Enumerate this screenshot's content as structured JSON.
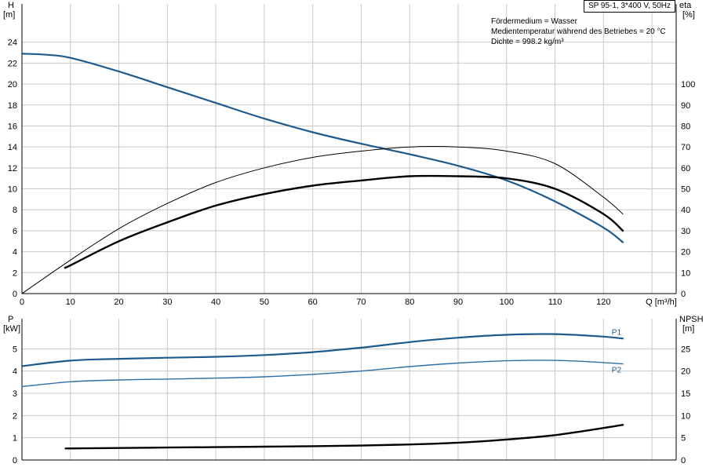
{
  "info": {
    "header": "SP 95-1, 3*400 V, 50Hz",
    "lines": [
      "Fördermedium = Wasser",
      "Medientemperatur während des Betriebes = 20 °C",
      "Dichte = 998.2 kg/m³"
    ]
  },
  "colors": {
    "grid": "#c8c8c8",
    "blue": "#1f5a8c",
    "blue2": "#2e6fa8",
    "black": "#000000"
  },
  "chart_data": [
    {
      "type": "line",
      "title": "",
      "x_axis": {
        "label": "Q [m³/h]",
        "ticks": [
          0,
          10,
          20,
          30,
          40,
          50,
          60,
          70,
          80,
          90,
          100,
          110,
          120
        ],
        "range": [
          0,
          135
        ]
      },
      "y_axis_left": {
        "label": [
          "H",
          "[m]"
        ],
        "ticks": [
          0,
          2,
          4,
          6,
          8,
          10,
          12,
          14,
          16,
          18,
          20,
          22,
          24
        ],
        "range": [
          0,
          26
        ]
      },
      "y_axis_right": {
        "label": [
          "eta",
          "[%]"
        ],
        "ticks": [
          0,
          10,
          20,
          30,
          40,
          50,
          60,
          70,
          80,
          90,
          100
        ],
        "range": [
          0,
          130
        ]
      },
      "grid": true,
      "series": [
        {
          "axis": "left",
          "style": "blue-thick",
          "x": [
            0,
            5,
            10,
            20,
            30,
            40,
            50,
            60,
            70,
            80,
            90,
            100,
            110,
            120,
            124
          ],
          "y": [
            22.9,
            22.8,
            22.5,
            21.2,
            19.7,
            18.2,
            16.7,
            15.4,
            14.3,
            13.3,
            12.2,
            10.8,
            8.8,
            6.3,
            4.9
          ]
        },
        {
          "axis": "right",
          "style": "black-thin",
          "x": [
            0,
            10,
            20,
            30,
            40,
            50,
            60,
            70,
            80,
            90,
            100,
            110,
            120,
            124
          ],
          "y": [
            0,
            16,
            31,
            43,
            53,
            60,
            65,
            68,
            70,
            70,
            68,
            62,
            46,
            38
          ]
        },
        {
          "axis": "right",
          "style": "black-thick",
          "x": [
            9,
            10,
            20,
            30,
            40,
            50,
            60,
            70,
            80,
            90,
            100,
            110,
            120,
            124
          ],
          "y": [
            12.5,
            13.5,
            25,
            34,
            42,
            47.5,
            51.5,
            54,
            56,
            56,
            55,
            50,
            38,
            30
          ]
        }
      ]
    },
    {
      "type": "line",
      "title": "",
      "x_axis": {
        "range": [
          0,
          135
        ]
      },
      "y_axis_left": {
        "label": [
          "P",
          "[kW]"
        ],
        "ticks": [
          0,
          1,
          2,
          3,
          4,
          5
        ],
        "range": [
          0,
          6
        ]
      },
      "y_axis_right": {
        "label": [
          "NPSH",
          "[m]"
        ],
        "ticks": [
          0,
          5,
          10,
          15,
          20,
          25
        ],
        "range": [
          0,
          30
        ]
      },
      "grid": true,
      "series": [
        {
          "name": "P1",
          "axis": "left",
          "style": "blue-thick",
          "x": [
            0,
            10,
            20,
            30,
            40,
            50,
            60,
            70,
            80,
            90,
            100,
            110,
            120,
            124
          ],
          "y": [
            4.22,
            4.47,
            4.55,
            4.6,
            4.64,
            4.72,
            4.85,
            5.05,
            5.3,
            5.5,
            5.63,
            5.66,
            5.55,
            5.46
          ]
        },
        {
          "name": "P2",
          "axis": "left",
          "style": "blue-thin",
          "x": [
            0,
            10,
            20,
            30,
            40,
            50,
            60,
            70,
            80,
            90,
            100,
            110,
            120,
            124
          ],
          "y": [
            3.3,
            3.52,
            3.6,
            3.64,
            3.68,
            3.74,
            3.85,
            4.0,
            4.2,
            4.36,
            4.46,
            4.48,
            4.38,
            4.32
          ]
        },
        {
          "axis": "right",
          "style": "black-thick",
          "x": [
            9,
            20,
            30,
            40,
            50,
            60,
            70,
            80,
            90,
            100,
            110,
            120,
            124
          ],
          "y": [
            2.6,
            2.7,
            2.8,
            2.9,
            3.0,
            3.1,
            3.25,
            3.5,
            3.9,
            4.6,
            5.6,
            7.2,
            7.9
          ]
        }
      ]
    }
  ]
}
